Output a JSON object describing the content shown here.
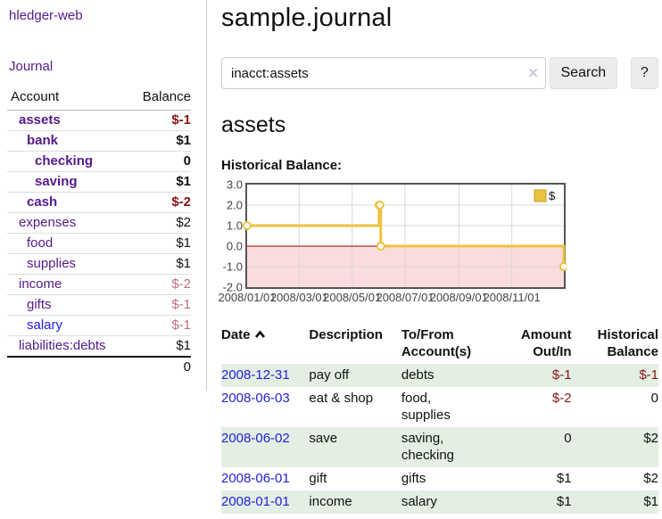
{
  "brand": "hledger-web",
  "nav": {
    "journal_label": "Journal"
  },
  "sidebar": {
    "header": {
      "account": "Account",
      "balance": "Balance"
    },
    "accounts": [
      {
        "name": "assets",
        "level": 0,
        "balance": "$-1",
        "bold": true,
        "balance_tone": "strong",
        "link_tone": "purple"
      },
      {
        "name": "bank",
        "level": 1,
        "balance": "$1",
        "bold": true,
        "balance_tone": "none",
        "link_tone": "purple"
      },
      {
        "name": "checking",
        "level": 2,
        "balance": "0",
        "bold": true,
        "balance_tone": "none",
        "link_tone": "purple"
      },
      {
        "name": "saving",
        "level": 2,
        "balance": "$1",
        "bold": true,
        "balance_tone": "none",
        "link_tone": "purple"
      },
      {
        "name": "cash",
        "level": 1,
        "balance": "$-2",
        "bold": true,
        "balance_tone": "strong",
        "link_tone": "purple"
      },
      {
        "name": "expenses",
        "level": 0,
        "balance": "$2",
        "bold": false,
        "balance_tone": "none",
        "link_tone": "purple"
      },
      {
        "name": "food",
        "level": 1,
        "balance": "$1",
        "bold": false,
        "balance_tone": "none",
        "link_tone": "purple"
      },
      {
        "name": "supplies",
        "level": 1,
        "balance": "$1",
        "bold": false,
        "balance_tone": "none",
        "link_tone": "purple"
      },
      {
        "name": "income",
        "level": 0,
        "balance": "$-2",
        "bold": false,
        "balance_tone": "soft",
        "link_tone": "purple"
      },
      {
        "name": "gifts",
        "level": 1,
        "balance": "$-1",
        "bold": false,
        "balance_tone": "soft",
        "link_tone": "purple"
      },
      {
        "name": "salary",
        "level": 1,
        "balance": "$-1",
        "bold": false,
        "balance_tone": "soft",
        "link_tone": "blue"
      },
      {
        "name": "liabilities:debts",
        "level": 0,
        "balance": "$1",
        "bold": false,
        "balance_tone": "none",
        "link_tone": "purple"
      }
    ],
    "total": "0"
  },
  "header": {
    "title": "sample.journal"
  },
  "search": {
    "value": "inacct:assets",
    "clear_icon": "✕",
    "button_label": "Search",
    "help_label": "?"
  },
  "account_page": {
    "heading": "assets",
    "chart_label": "Historical Balance:"
  },
  "chart_data": {
    "type": "line",
    "title": "Historical Balance:",
    "step": true,
    "series": [
      {
        "name": "$",
        "color": "#edc240",
        "points": [
          [
            "2008-01-01",
            1
          ],
          [
            "2008-06-01",
            2
          ],
          [
            "2008-06-02",
            2
          ],
          [
            "2008-06-03",
            0
          ],
          [
            "2008-12-31",
            -1
          ]
        ]
      }
    ],
    "x_range": [
      "2008-01-01",
      "2008-12-31"
    ],
    "x_ticks": [
      {
        "date": "2008-01-01",
        "label": "2008/01/01"
      },
      {
        "date": "2008-03-01",
        "label": "2008/03/01"
      },
      {
        "date": "2008-05-01",
        "label": "2008/05/01"
      },
      {
        "date": "2008-07-01",
        "label": "2008/07/01"
      },
      {
        "date": "2008-09-01",
        "label": "2008/09/01"
      },
      {
        "date": "2008-11-01",
        "label": "2008/11/01"
      }
    ],
    "ylim": [
      -2,
      3
    ],
    "y_ticks": [
      {
        "v": 3,
        "label": "3.0"
      },
      {
        "v": 2,
        "label": "2.0"
      },
      {
        "v": 1,
        "label": "1.0"
      },
      {
        "v": 0,
        "label": "0.0"
      },
      {
        "v": -1,
        "label": "-1.0"
      },
      {
        "v": -2,
        "label": "-2.0"
      }
    ],
    "legend": {
      "label": "$",
      "position": "top-right"
    },
    "grid": true,
    "negative_region_color": "#fbdcdc",
    "zero_line_color": "#990000",
    "border_color": "#545454",
    "grid_color": "#d9d9d9"
  },
  "register": {
    "columns": [
      {
        "label": "Date",
        "sorted": "asc"
      },
      {
        "label": "Description"
      },
      {
        "label": "To/From Account(s)"
      },
      {
        "label": "Amount Out/In"
      },
      {
        "label": "Historical Balance"
      }
    ],
    "rows": [
      {
        "date": "2008-12-31",
        "description": "pay off",
        "accounts": "debts",
        "amount": "$-1",
        "amount_neg": true,
        "balance": "$-1",
        "balance_neg": true
      },
      {
        "date": "2008-06-03",
        "description": "eat & shop",
        "accounts": "food, supplies",
        "amount": "$-2",
        "amount_neg": true,
        "balance": "0",
        "balance_neg": false
      },
      {
        "date": "2008-06-02",
        "description": "save",
        "accounts": "saving, checking",
        "amount": "0",
        "amount_neg": false,
        "balance": "$2",
        "balance_neg": false
      },
      {
        "date": "2008-06-01",
        "description": "gift",
        "accounts": "gifts",
        "amount": "$1",
        "amount_neg": false,
        "balance": "$2",
        "balance_neg": false
      },
      {
        "date": "2008-01-01",
        "description": "income",
        "accounts": "salary",
        "amount": "$1",
        "amount_neg": false,
        "balance": "$1",
        "balance_neg": false
      }
    ]
  }
}
